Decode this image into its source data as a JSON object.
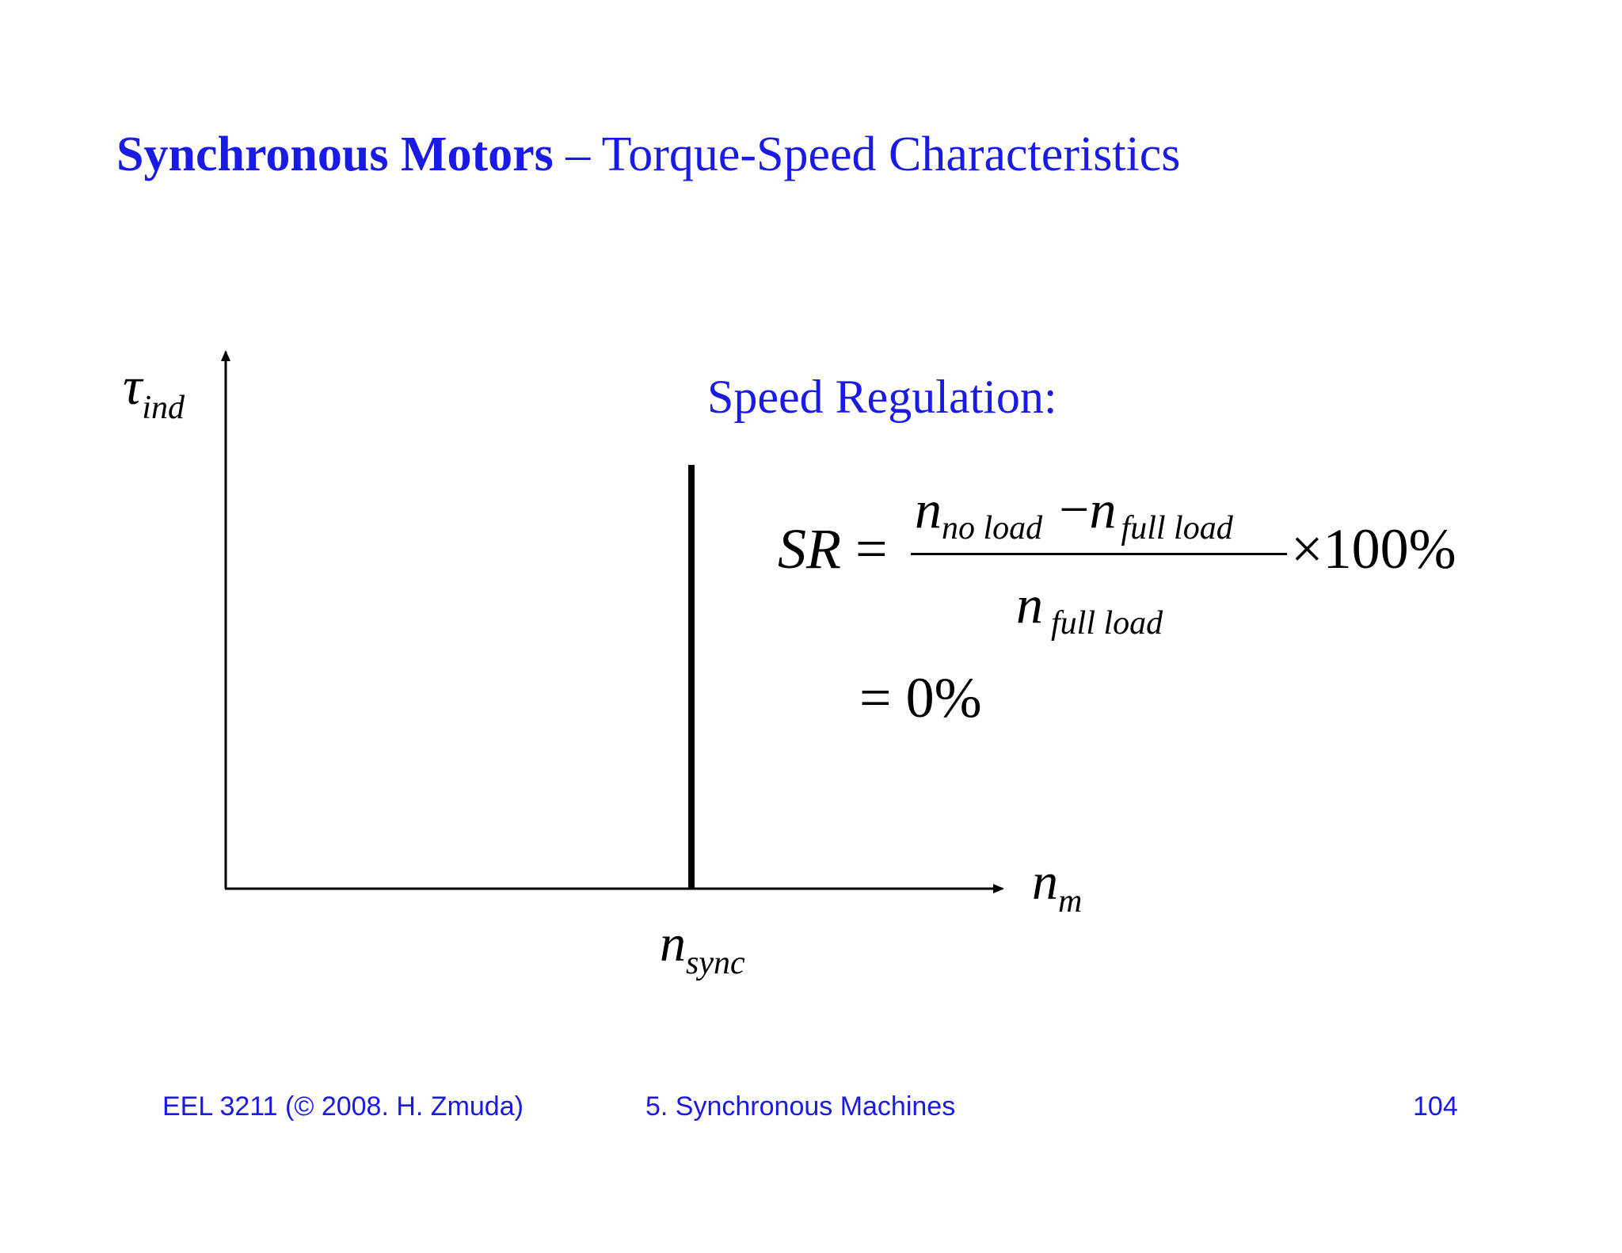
{
  "slide": {
    "title_bold": "Synchronous Motors",
    "title_rest": " – Torque-Speed Characteristics"
  },
  "diagram": {
    "y_axis_symbol": "τ",
    "y_axis_subscript": "ind",
    "x_axis_symbol": "n",
    "x_axis_subscript": "m",
    "marker_symbol": "n",
    "marker_subscript": "sync"
  },
  "speed_regulation": {
    "label": "Speed Regulation:",
    "lhs": "SR",
    "equals": "=",
    "numerator_n1": "n",
    "numerator_sub1": "no load",
    "minus": "−",
    "numerator_n2": "n",
    "numerator_sub2": "full load",
    "denominator_n": "n",
    "denominator_sub": "full load",
    "multiplier": "×100%",
    "result_equals": "=",
    "result": "0%"
  },
  "footer": {
    "course": "EEL 3211 (© 2008. H. Zmuda)",
    "chapter": "5. Synchronous Machines",
    "page": "104"
  }
}
